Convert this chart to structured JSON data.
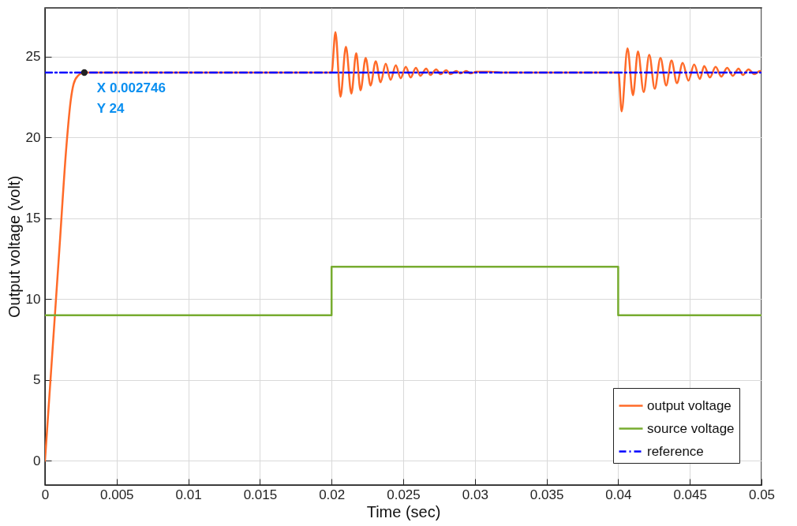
{
  "chart_data": {
    "type": "line",
    "xlabel": "Time (sec)",
    "ylabel": "Output voltage (volt)",
    "xlim": [
      0,
      0.05
    ],
    "ylim": [
      -1.5,
      28
    ],
    "xticks": [
      0,
      0.005,
      0.01,
      0.015,
      0.02,
      0.025,
      0.03,
      0.035,
      0.04,
      0.045,
      0.05
    ],
    "yticks": [
      0,
      5,
      10,
      15,
      20,
      25
    ],
    "grid": true,
    "legend": "bottom right",
    "series": [
      {
        "name": "output voltage",
        "color": "#ff6a28",
        "line_style": "solid",
        "x": [
          0,
          0.0005,
          0.001,
          0.0015,
          0.0018,
          0.002,
          0.0023,
          0.002746,
          0.01,
          0.02,
          0.02027,
          0.02062,
          0.021,
          0.02138,
          0.02172,
          0.02202,
          0.02238,
          0.02272,
          0.02308,
          0.02342,
          0.02378,
          0.02412,
          0.02448,
          0.02482,
          0.02518,
          0.02552,
          0.02588,
          0.0262,
          0.0266,
          0.0269,
          0.0273,
          0.0276,
          0.028,
          0.0283,
          0.0287,
          0.029,
          0.0294,
          0.0297,
          0.0301,
          0.031,
          0.032,
          0.04002,
          0.04024,
          0.04065,
          0.04103,
          0.04138,
          0.04178,
          0.04217,
          0.04255,
          0.04295,
          0.04335,
          0.04372,
          0.0441,
          0.0445,
          0.0449,
          0.0453,
          0.0457,
          0.046,
          0.0464,
          0.0468,
          0.0472,
          0.0476,
          0.048,
          0.0484,
          0.0487,
          0.0491,
          0.0495,
          0.0499,
          0.05
        ],
        "values": [
          0,
          6.5,
          13,
          19.5,
          22.3,
          23.3,
          23.8,
          24,
          24,
          24,
          26.5,
          22.5,
          25.6,
          22.7,
          25.2,
          22.9,
          24.9,
          23.2,
          24.7,
          23.4,
          24.55,
          23.55,
          24.45,
          23.65,
          24.35,
          23.7,
          24.3,
          23.8,
          24.25,
          23.85,
          24.2,
          23.9,
          24.15,
          23.9,
          24.1,
          23.95,
          24.1,
          23.95,
          24.05,
          24.05,
          24,
          24,
          21.6,
          25.5,
          22.6,
          25.3,
          22.8,
          25.1,
          23,
          24.9,
          23.2,
          24.75,
          23.35,
          24.6,
          23.5,
          24.5,
          23.6,
          24.4,
          23.7,
          24.35,
          23.75,
          24.3,
          23.8,
          24.25,
          23.85,
          24.2,
          23.9,
          24.1,
          24
        ]
      },
      {
        "name": "source voltage",
        "color": "#77ac30",
        "line_style": "solid",
        "x": [
          0,
          0.02,
          0.02,
          0.04,
          0.04,
          0.05
        ],
        "values": [
          9,
          9,
          12,
          12,
          9,
          9
        ]
      },
      {
        "name": "reference",
        "color": "#0000ff",
        "line_style": "dashed",
        "x": [
          0,
          0.05
        ],
        "values": [
          24,
          24
        ]
      }
    ],
    "annotations": [
      {
        "text": "X 0.002746\nY 24",
        "x": 0.002746,
        "y": 24
      }
    ]
  }
}
